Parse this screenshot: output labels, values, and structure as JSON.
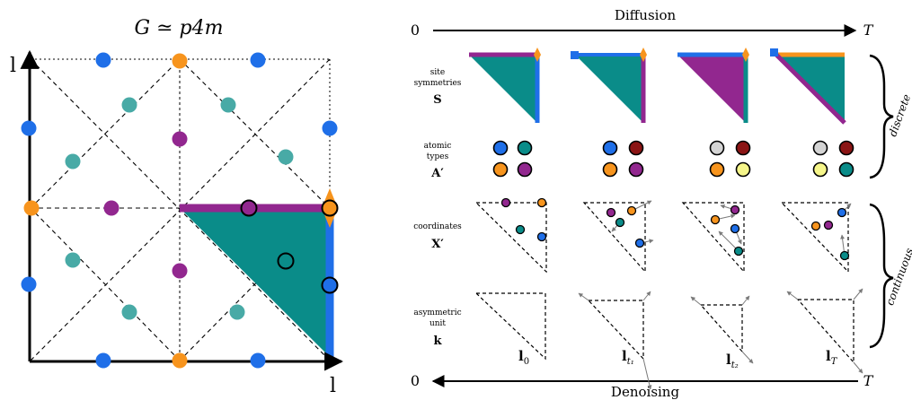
{
  "colors": {
    "blue": "#1f6fe8",
    "teal": "#0a8c89",
    "teal_light": "#48aaa6",
    "purple": "#92278f",
    "orange": "#f7941d",
    "red": "#8b1515",
    "light_gray": "#d4d4d4",
    "light_yellow": "#f6f68a",
    "black": "#000000"
  },
  "left_panel": {
    "title": "G ≃ p4m",
    "x_axis_label": "l",
    "y_axis_label": "l"
  },
  "right_panel": {
    "diffusion_label": "Diffusion",
    "denoising_label": "Denoising",
    "top_start": "0",
    "top_end": "T",
    "bottom_start": "0",
    "bottom_end": "T",
    "rows": [
      {
        "lines": [
          "site",
          "symmetries"
        ],
        "symbol": "S"
      },
      {
        "lines": [
          "atomic",
          "types"
        ],
        "symbol": "A′"
      },
      {
        "lines": [
          "coordinates"
        ],
        "symbol": "X′"
      },
      {
        "lines": [
          "asymmetric",
          "unit"
        ],
        "symbol": "k"
      }
    ],
    "discrete_label": "discrete",
    "continuous_label": "continuous",
    "lattice_labels": [
      {
        "base": "l",
        "sub": "0"
      },
      {
        "base": "l",
        "sub": "t₁"
      },
      {
        "base": "l",
        "sub": "t₂"
      },
      {
        "base": "l",
        "sub": "T"
      }
    ],
    "atom_types": [
      [
        "blue",
        "teal",
        "orange",
        "purple"
      ],
      [
        "blue",
        "red",
        "orange",
        "purple"
      ],
      [
        "light_gray",
        "red",
        "orange",
        "light_yellow"
      ],
      [
        "light_gray",
        "red",
        "light_yellow",
        "teal"
      ]
    ]
  }
}
